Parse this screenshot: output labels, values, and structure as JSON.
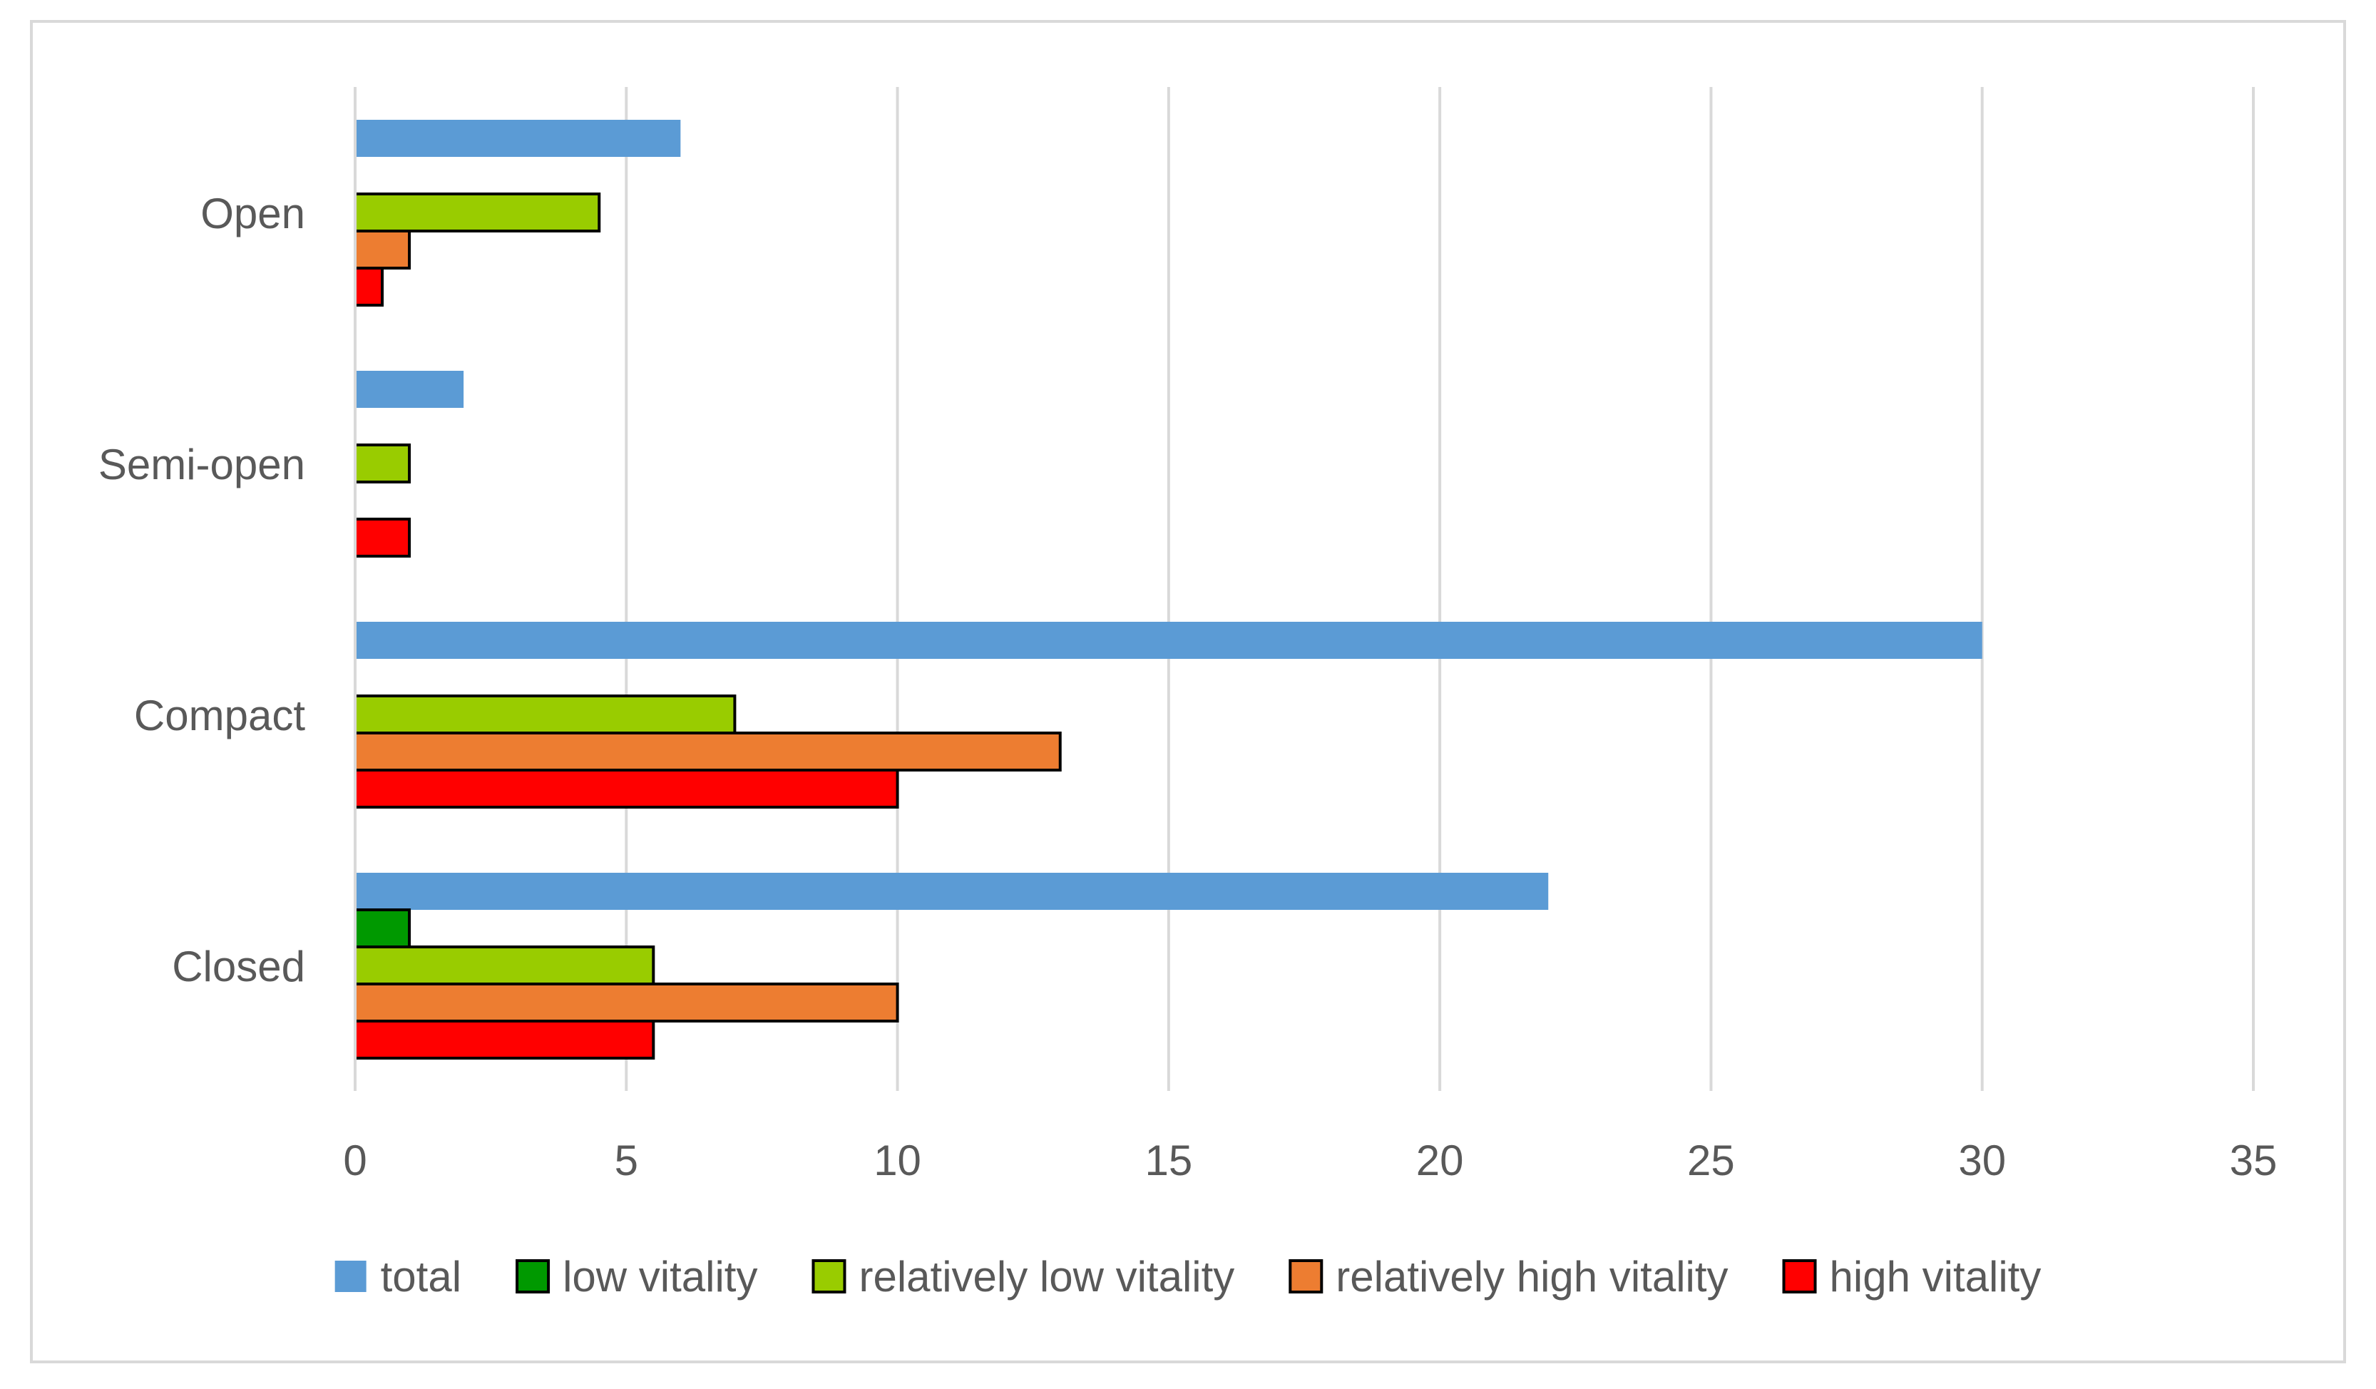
{
  "chart_data": {
    "type": "bar",
    "orientation": "horizontal",
    "title": "",
    "xlabel": "",
    "ylabel": "",
    "xlim": [
      0,
      35
    ],
    "x_ticks": [
      0,
      5,
      10,
      15,
      20,
      25,
      30,
      35
    ],
    "grid": true,
    "legend_position": "bottom",
    "categories": [
      "Open",
      "Semi-open",
      "Compact",
      "Closed"
    ],
    "series": [
      {
        "name": "total",
        "color": "#5b9bd5",
        "outlined": false,
        "values": [
          6,
          2,
          30,
          22
        ]
      },
      {
        "name": "low vitality",
        "color": "#009900",
        "outlined": true,
        "values": [
          0,
          0,
          0,
          1
        ]
      },
      {
        "name": "relatively low vitality",
        "color": "#99cc00",
        "outlined": true,
        "values": [
          4.5,
          1,
          7,
          5.5
        ]
      },
      {
        "name": "relatively high vitality",
        "color": "#ed7d31",
        "outlined": true,
        "values": [
          1,
          0,
          13,
          10
        ]
      },
      {
        "name": "high vitality",
        "color": "#ff0000",
        "outlined": true,
        "values": [
          0.5,
          1,
          10,
          5.5
        ]
      }
    ]
  }
}
